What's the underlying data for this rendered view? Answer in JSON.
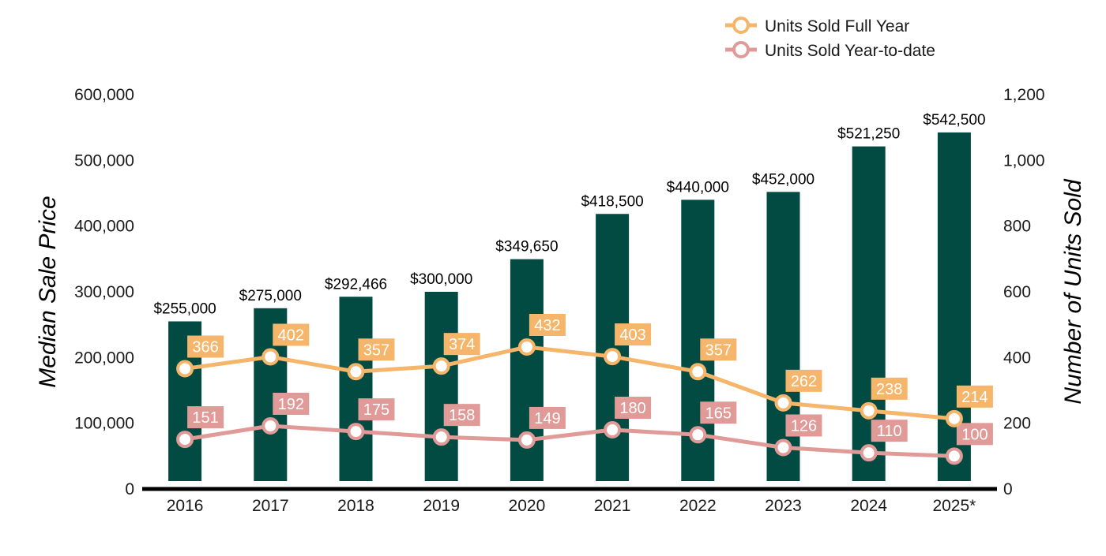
{
  "chart_data": {
    "type": "bar",
    "categories": [
      "2016",
      "2017",
      "2018",
      "2019",
      "2020",
      "2021",
      "2022",
      "2023",
      "2024",
      "2025*"
    ],
    "ylabel": "Median Sale Price",
    "y2label": "Number of Units Sold",
    "ylim": [
      0,
      600000
    ],
    "y2lim": [
      0,
      1200
    ],
    "yticks": [
      "0",
      "100,000",
      "200,000",
      "300,000",
      "400,000",
      "500,000",
      "600,000"
    ],
    "y2ticks": [
      "0",
      "200",
      "400",
      "600",
      "800",
      "1,000",
      "1,200"
    ],
    "bars": {
      "values": [
        255000,
        275000,
        292466,
        300000,
        349650,
        418500,
        440000,
        452000,
        521250,
        542500
      ],
      "labels": [
        "$255,000",
        "$275,000",
        "$292,466",
        "$300,000",
        "$349,650",
        "$418,500",
        "$440,000",
        "$452,000",
        "$521,250",
        "$542,500"
      ],
      "color": "#024b42"
    },
    "series": [
      {
        "name": "Units Sold Full Year",
        "type": "line",
        "axis": "right",
        "values": [
          366,
          402,
          357,
          374,
          432,
          403,
          357,
          262,
          238,
          214
        ],
        "color": "#f5b56b"
      },
      {
        "name": "Units Sold Year-to-date",
        "type": "line",
        "axis": "right",
        "values": [
          151,
          192,
          175,
          158,
          149,
          180,
          165,
          126,
          110,
          100
        ],
        "color": "#e09a97"
      }
    ],
    "legend": "top-right",
    "grid": false
  }
}
